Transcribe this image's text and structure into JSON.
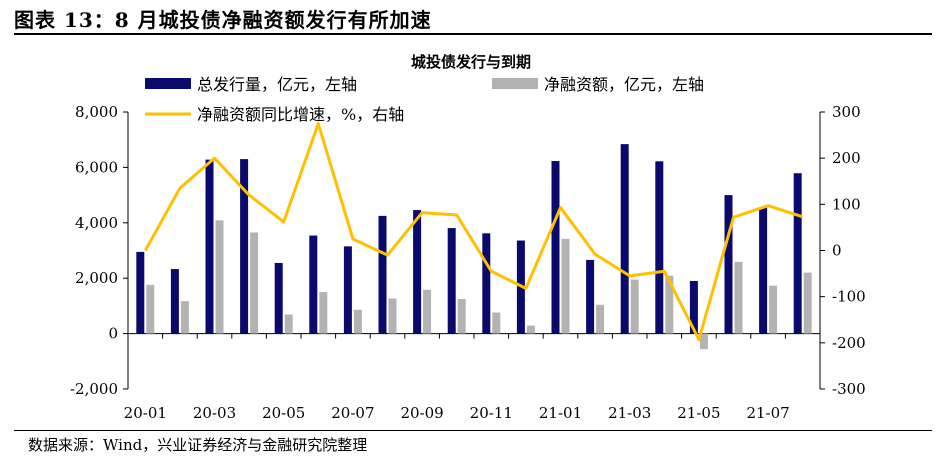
{
  "figure_title": "图表 13：8 月城投债净融资额发行有所加速",
  "source_note": "数据来源：Wind，兴业证券经济与金融研究院整理",
  "colors": {
    "total": "#0a0a6e",
    "net": "#b3b3b3",
    "yoy": "#ffc000"
  },
  "chart_data": {
    "type": "bar",
    "title": "城投债发行与到期",
    "categories": [
      "20-01",
      "20-02",
      "20-03",
      "20-04",
      "20-05",
      "20-06",
      "20-07",
      "20-08",
      "20-09",
      "20-10",
      "20-11",
      "20-12",
      "21-01",
      "21-02",
      "21-03",
      "21-04",
      "21-05",
      "21-06",
      "21-07",
      "21-08"
    ],
    "x_tick_labels": [
      "20-01",
      "",
      "20-03",
      "",
      "20-05",
      "",
      "20-07",
      "",
      "20-09",
      "",
      "20-11",
      "",
      "21-01",
      "",
      "21-03",
      "",
      "21-05",
      "",
      "21-07",
      ""
    ],
    "series": [
      {
        "name": "总发行量，亿元，左轴",
        "type": "bar",
        "axis": "left",
        "values": [
          2950,
          2330,
          6280,
          6300,
          2550,
          3540,
          3150,
          4250,
          4460,
          3810,
          3620,
          3360,
          6230,
          2660,
          6840,
          6220,
          1900,
          5000,
          4560,
          5790
        ]
      },
      {
        "name": "净融资额，亿元，左轴",
        "type": "bar",
        "axis": "left",
        "values": [
          1760,
          1170,
          4090,
          3650,
          690,
          1500,
          860,
          1270,
          1580,
          1250,
          760,
          290,
          3420,
          1040,
          1950,
          2090,
          -560,
          2590,
          1730,
          2200
        ]
      },
      {
        "name": "净融资额同比增速，%，右轴",
        "type": "line",
        "axis": "right",
        "values": [
          0,
          135,
          200,
          120,
          62,
          275,
          25,
          -10,
          82,
          77,
          -45,
          -82,
          93,
          -8,
          -55,
          -45,
          -193,
          72,
          97,
          73
        ]
      }
    ],
    "y_left": {
      "min": -2000,
      "max": 8000,
      "ticks": [
        -2000,
        0,
        2000,
        4000,
        6000,
        8000
      ],
      "tick_labels": [
        "-2,000",
        "0",
        "2,000",
        "4,000",
        "6,000",
        "8,000"
      ]
    },
    "y_right": {
      "min": -300,
      "max": 300,
      "ticks": [
        -300,
        -200,
        -100,
        0,
        100,
        200,
        300
      ],
      "tick_labels": [
        "-300",
        "-200",
        "-100",
        "0",
        "100",
        "200",
        "300"
      ]
    },
    "legend_position": "top-left",
    "grid": false
  }
}
